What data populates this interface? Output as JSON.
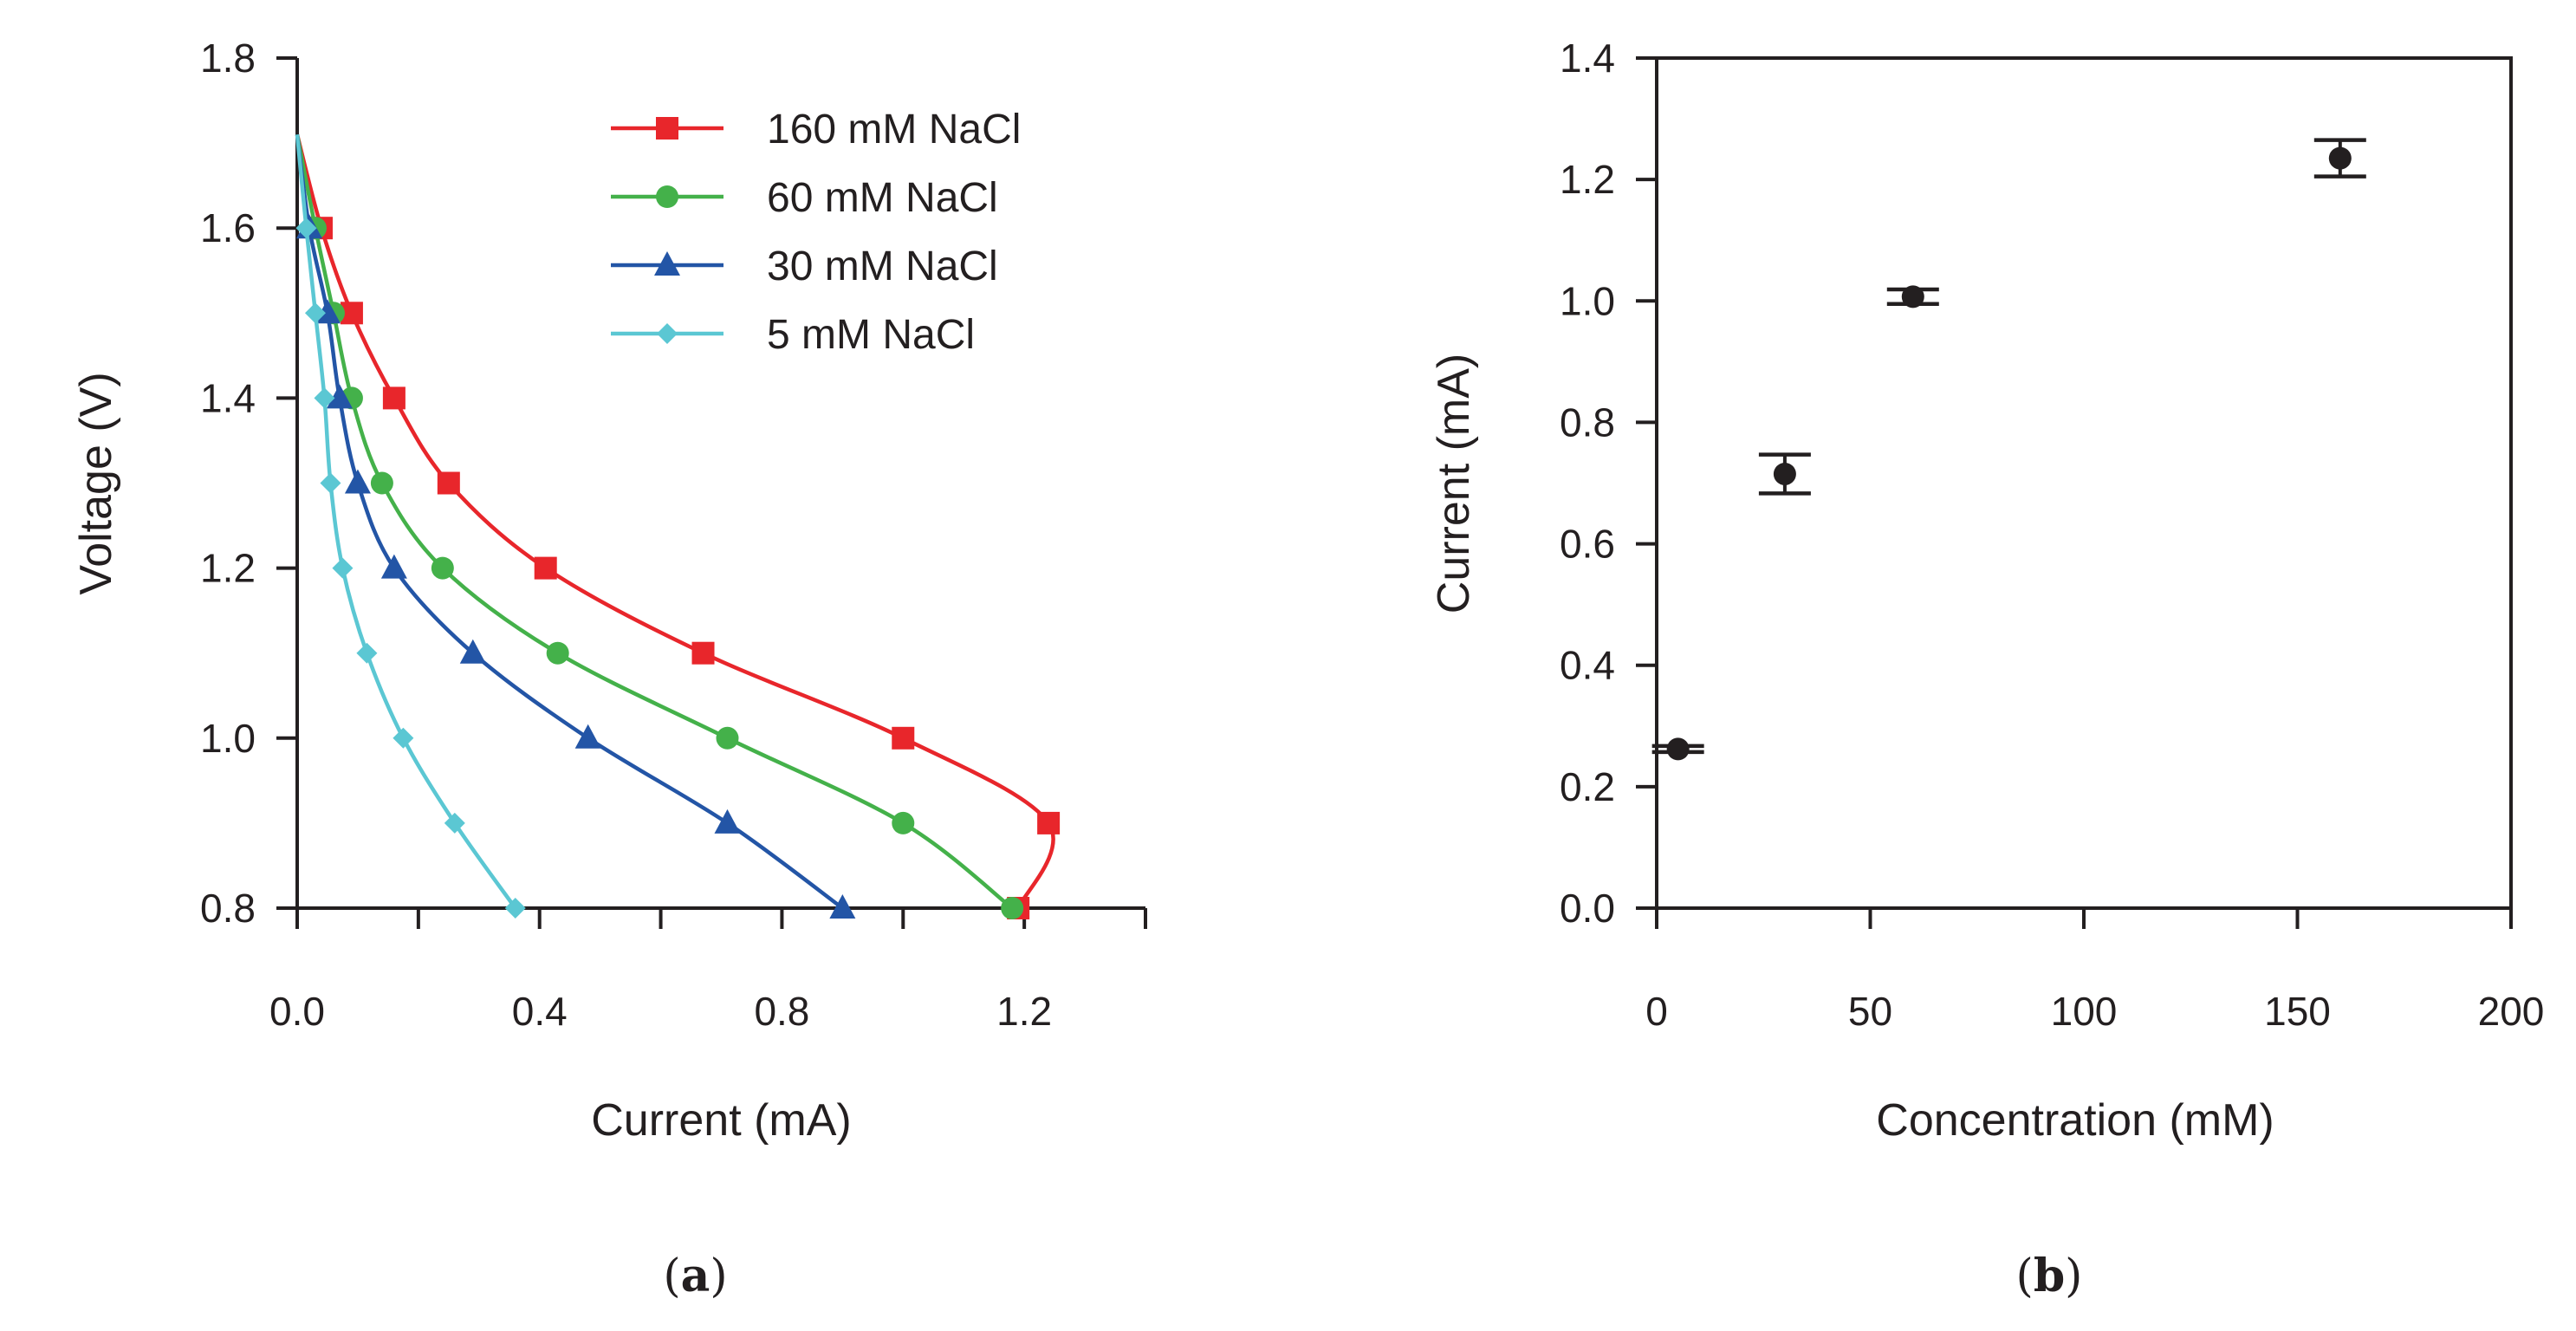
{
  "chart_data": [
    {
      "type": "line",
      "panel_label": "a",
      "xlabel": "Current (mA)",
      "ylabel": "Voltage (V)",
      "xlim": [
        0.0,
        1.4
      ],
      "ylim": [
        0.8,
        1.8
      ],
      "xticks": [
        0.0,
        0.2,
        0.4,
        0.6,
        0.8,
        1.0,
        1.2,
        1.4
      ],
      "xtick_labels": [
        "0.0",
        "",
        "0.4",
        "",
        "0.8",
        "",
        "1.2",
        ""
      ],
      "yticks": [
        0.8,
        1.0,
        1.2,
        1.4,
        1.6,
        1.8
      ],
      "ytick_labels": [
        "0.8",
        "1.0",
        "1.2",
        "1.4",
        "1.6",
        "1.8"
      ],
      "grid": false,
      "legend_position": "top-right",
      "series": [
        {
          "name": "160 mM NaCl",
          "color": "#e8262b",
          "marker": "square",
          "x": [
            0.04,
            0.09,
            0.16,
            0.25,
            0.41,
            0.67,
            1.0,
            1.24,
            1.19
          ],
          "y": [
            1.6,
            1.5,
            1.4,
            1.3,
            1.2,
            1.1,
            1.0,
            0.9,
            0.8
          ]
        },
        {
          "name": "60 mM NaCl",
          "color": "#44b14a",
          "marker": "circle",
          "x": [
            0.03,
            0.06,
            0.09,
            0.14,
            0.24,
            0.43,
            0.71,
            1.0,
            1.18
          ],
          "y": [
            1.6,
            1.5,
            1.4,
            1.3,
            1.2,
            1.1,
            1.0,
            0.9,
            0.8
          ]
        },
        {
          "name": "30 mM NaCl",
          "color": "#2355a6",
          "marker": "triangle",
          "x": [
            0.02,
            0.05,
            0.07,
            0.1,
            0.16,
            0.29,
            0.48,
            0.71,
            0.9
          ],
          "y": [
            1.6,
            1.5,
            1.4,
            1.3,
            1.2,
            1.1,
            1.0,
            0.9,
            0.8
          ]
        },
        {
          "name": "5 mM NaCl",
          "color": "#5bc7d3",
          "marker": "diamond",
          "x": [
            0.015,
            0.03,
            0.045,
            0.055,
            0.075,
            0.115,
            0.175,
            0.26,
            0.36
          ],
          "y": [
            1.6,
            1.5,
            1.4,
            1.3,
            1.2,
            1.1,
            1.0,
            0.9,
            0.8
          ]
        }
      ],
      "curve_start": {
        "x": 0.0,
        "y": 1.71
      }
    },
    {
      "type": "scatter",
      "panel_label": "b",
      "xlabel": "Concentration (mM)",
      "ylabel": "Current (mA)",
      "xlim": [
        0,
        200
      ],
      "ylim": [
        0.0,
        1.4
      ],
      "xticks": [
        0,
        50,
        100,
        150,
        200
      ],
      "xtick_labels": [
        "0",
        "50",
        "100",
        "150",
        "200"
      ],
      "yticks": [
        0.0,
        0.2,
        0.4,
        0.6,
        0.8,
        1.0,
        1.2,
        1.4
      ],
      "ytick_labels": [
        "0.0",
        "0.2",
        "0.4",
        "0.6",
        "0.8",
        "1.0",
        "1.2",
        "1.4"
      ],
      "grid": false,
      "points": [
        {
          "x": 5,
          "y": 0.262,
          "err": 0.005
        },
        {
          "x": 30,
          "y": 0.715,
          "err": 0.032
        },
        {
          "x": 60,
          "y": 1.007,
          "err": 0.012
        },
        {
          "x": 160,
          "y": 1.235,
          "err": 0.03
        }
      ],
      "color": "#231f20"
    }
  ]
}
